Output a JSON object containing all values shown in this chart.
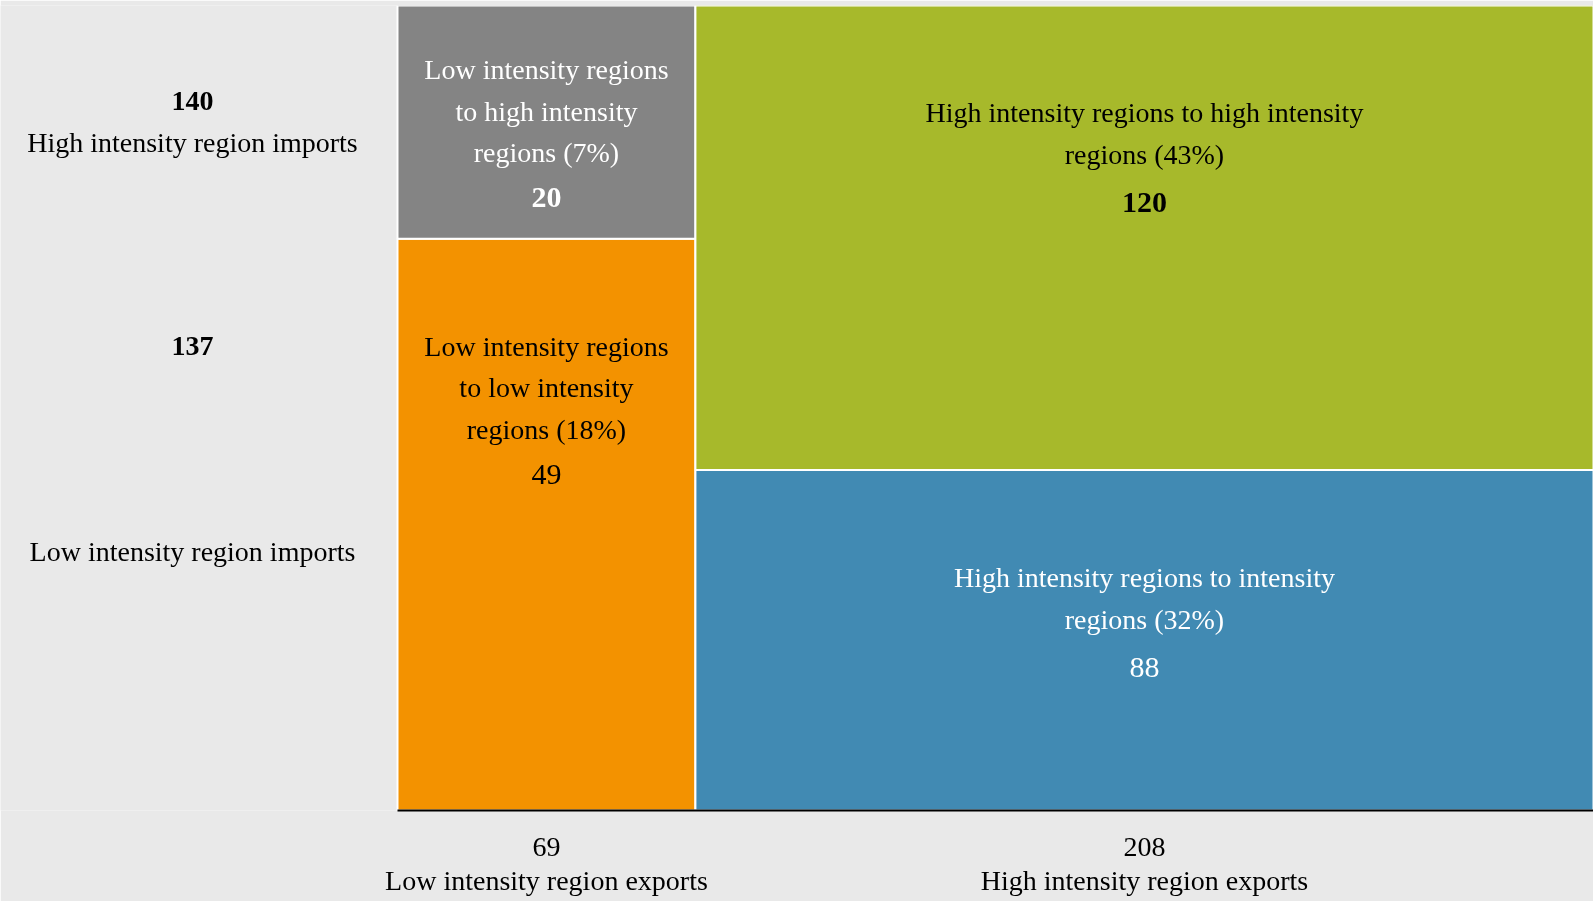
{
  "chart_data": {
    "type": "other",
    "data_labels": true,
    "categories": [
      "69\nLow intensity region exports",
      "208\nHigh intensity region exports"
    ],
    "series": [
      {
        "name": "Low intensity regions to low intensity regions (18%)",
        "color": "#f39200",
        "values": [
          49,
          null
        ]
      },
      {
        "name": "High intensity regions to intensity regions (32%)",
        "color": "#418ab3",
        "values": [
          null,
          88
        ]
      },
      {
        "name": "Low intensity regions to high intensity regions (7%)",
        "color": "#848484",
        "values": [
          20,
          null
        ]
      },
      {
        "name": "High intensity regions to high intensity regions (43%)",
        "color": "#a7b92b",
        "values": [
          null,
          120
        ]
      }
    ],
    "annotations": [
      "140",
      "High intensity region imports",
      "137",
      "Low intensity region imports"
    ]
  }
}
